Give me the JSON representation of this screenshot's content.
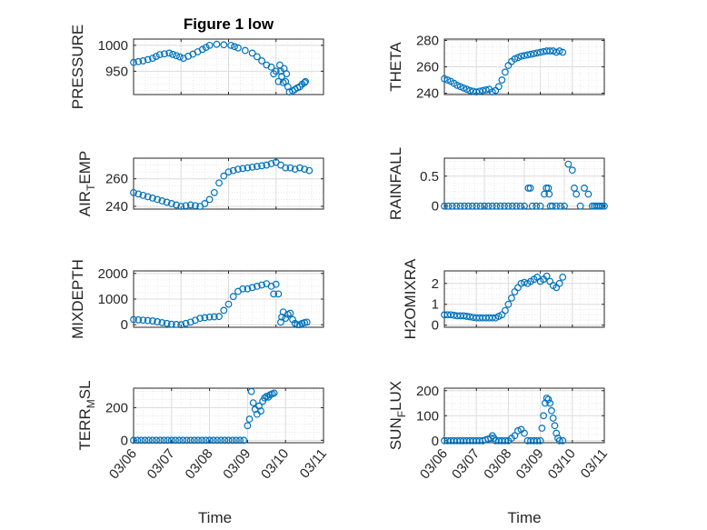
{
  "figure": {
    "title": "Figure 1 low"
  },
  "colors": {
    "marker": "#0072BD",
    "grid": "#dcdcdc",
    "axis": "#262626",
    "background": "#ffffff"
  },
  "chart_data": [
    {
      "type": "scatter",
      "ylabel": "PRESSURE",
      "title": "Figure 1 low",
      "xlim": [
        "03/06",
        "03/10"
      ],
      "ylim": [
        905,
        1012
      ],
      "yticks": [
        950,
        1000
      ],
      "xticks": [
        "03/06",
        "03/07",
        "03/08",
        "03/09",
        "03/10"
      ],
      "show_xticklabels": false,
      "grid": true,
      "marker": "open-circle",
      "series": [
        {
          "x": [
            0,
            0.2,
            0.4,
            0.55,
            0.75,
            0.9,
            1.05,
            1.25,
            1.45,
            1.6,
            1.75,
            1.9,
            2.05,
            2.2,
            2.35,
            2.5,
            2.6,
            2.7,
            2.8,
            2.9,
            2.95,
            3.0,
            3.05,
            3.08,
            3.1,
            3.12,
            3.15,
            3.17,
            3.2,
            3.22,
            3.25,
            3.28,
            3.35,
            3.4,
            3.45,
            3.5,
            3.55,
            3.6,
            3.62
          ],
          "y": [
            967,
            970,
            975,
            982,
            985,
            980,
            975,
            983,
            992,
            1000,
            1002,
            1001,
            1000,
            995,
            990,
            985,
            978,
            970,
            962,
            958,
            945,
            950,
            930,
            962,
            950,
            940,
            928,
            955,
            930,
            945,
            920,
            910,
            912,
            915,
            918,
            920,
            925,
            928,
            930
          ]
        }
      ]
    },
    {
      "type": "scatter",
      "ylabel": "THETA",
      "xlim": [
        "03/06",
        "03/11"
      ],
      "ylim": [
        239,
        281
      ],
      "yticks": [
        240,
        260,
        280
      ],
      "xticks": [
        "03/06",
        "03/07",
        "03/08",
        "03/09",
        "03/10",
        "03/11"
      ],
      "show_xticklabels": false,
      "grid": true,
      "marker": "open-circle",
      "series": [
        {
          "x": [
            0,
            0.2,
            0.4,
            0.6,
            0.8,
            1.0,
            1.2,
            1.4,
            1.5,
            1.6,
            1.7,
            1.8,
            1.9,
            2.0,
            2.1,
            2.2,
            2.4,
            2.6,
            2.8,
            3.0,
            3.2,
            3.4,
            3.5,
            3.6,
            3.7
          ],
          "y": [
            251,
            249,
            246,
            244,
            242,
            241,
            242,
            243,
            241,
            242,
            245,
            250,
            256,
            261,
            264,
            266,
            268,
            269,
            270,
            271,
            272,
            272,
            271,
            272,
            271
          ]
        }
      ]
    },
    {
      "type": "scatter",
      "ylabel": "AIR_TEMP",
      "xlim": [
        "03/06",
        "03/10"
      ],
      "ylim": [
        238,
        275
      ],
      "yticks": [
        240,
        260
      ],
      "xticks": [
        "03/06",
        "03/07",
        "03/08",
        "03/09",
        "03/10"
      ],
      "show_xticklabels": false,
      "grid": true,
      "marker": "open-circle",
      "series": [
        {
          "x": [
            0,
            0.2,
            0.4,
            0.6,
            0.8,
            1.0,
            1.2,
            1.4,
            1.5,
            1.6,
            1.7,
            1.8,
            1.9,
            2.0,
            2.2,
            2.4,
            2.6,
            2.8,
            3.0,
            3.1,
            3.2,
            3.3,
            3.4,
            3.5,
            3.6,
            3.7
          ],
          "y": [
            250,
            248,
            246,
            244,
            242,
            240,
            241,
            240,
            242,
            245,
            250,
            257,
            262,
            265,
            267,
            268,
            269,
            270,
            272,
            270,
            268,
            268,
            267,
            268,
            267,
            266
          ]
        }
      ]
    },
    {
      "type": "scatter",
      "ylabel": "RAINFALL",
      "xlim": [
        "03/06",
        "03/10"
      ],
      "ylim": [
        -0.05,
        0.8
      ],
      "yticks": [
        0,
        0.5
      ],
      "xticks": [
        "03/06",
        "03/07",
        "03/08",
        "03/09",
        "03/10"
      ],
      "show_xticklabels": false,
      "grid": true,
      "marker": "open-circle",
      "series": [
        {
          "x": [
            0,
            0.5,
            1.0,
            1.5,
            2.0,
            2.1,
            2.15,
            2.2,
            2.4,
            2.5,
            2.55,
            2.6,
            2.62,
            2.65,
            2.7,
            2.8,
            3.0,
            3.1,
            3.2,
            3.25,
            3.3,
            3.4,
            3.5,
            3.6,
            3.7,
            3.75,
            3.8,
            3.85,
            3.9,
            3.95,
            4.0
          ],
          "y": [
            0,
            0,
            0,
            0,
            0,
            0.3,
            0.3,
            0,
            0,
            0.2,
            0.3,
            0.3,
            0.2,
            0,
            0,
            0,
            0,
            0.7,
            0.6,
            0.3,
            0.2,
            0,
            0.3,
            0.2,
            0,
            0,
            0,
            0,
            0,
            0,
            0
          ]
        }
      ]
    },
    {
      "type": "scatter",
      "ylabel": "MIXDEPTH",
      "xlim": [
        "03/06",
        "03/10"
      ],
      "ylim": [
        -100,
        2100
      ],
      "yticks": [
        0,
        1000,
        2000
      ],
      "xticks": [
        "03/06",
        "03/07",
        "03/08",
        "03/09",
        "03/10"
      ],
      "show_xticklabels": false,
      "grid": true,
      "marker": "open-circle",
      "series": [
        {
          "x": [
            0,
            0.2,
            0.4,
            0.6,
            0.8,
            1.0,
            1.2,
            1.4,
            1.6,
            1.8,
            2.0,
            2.1,
            2.2,
            2.3,
            2.4,
            2.5,
            2.6,
            2.7,
            2.8,
            2.9,
            2.95,
            3.0,
            3.05,
            3.1,
            3.12,
            3.15,
            3.2,
            3.25,
            3.3,
            3.35,
            3.4,
            3.45,
            3.5,
            3.55,
            3.6,
            3.65
          ],
          "y": [
            200,
            180,
            150,
            80,
            20,
            0,
            100,
            250,
            300,
            320,
            800,
            1100,
            1300,
            1400,
            1400,
            1450,
            1500,
            1550,
            1600,
            1500,
            1200,
            1580,
            1200,
            100,
            300,
            500,
            250,
            400,
            450,
            200,
            50,
            0,
            0,
            50,
            80,
            100
          ]
        }
      ]
    },
    {
      "type": "scatter",
      "ylabel": "H2OMIXRA",
      "xlim": [
        "03/06",
        "03/11"
      ],
      "ylim": [
        -0.1,
        2.6
      ],
      "yticks": [
        0,
        1,
        2
      ],
      "xticks": [
        "03/06",
        "03/07",
        "03/08",
        "03/09",
        "03/10",
        "03/11"
      ],
      "show_xticklabels": false,
      "grid": true,
      "marker": "open-circle",
      "series": [
        {
          "x": [
            0,
            0.2,
            0.4,
            0.6,
            0.8,
            1.0,
            1.2,
            1.4,
            1.6,
            1.8,
            1.9,
            2.0,
            2.1,
            2.2,
            2.3,
            2.4,
            2.5,
            2.6,
            2.7,
            2.8,
            2.9,
            3.0,
            3.1,
            3.2,
            3.3,
            3.4,
            3.5,
            3.6,
            3.7
          ],
          "y": [
            0.5,
            0.5,
            0.45,
            0.45,
            0.4,
            0.35,
            0.35,
            0.35,
            0.35,
            0.5,
            0.7,
            1.0,
            1.3,
            1.6,
            1.8,
            2.0,
            2.05,
            2.0,
            2.1,
            2.2,
            2.3,
            2.1,
            2.2,
            2.35,
            2.1,
            1.9,
            1.8,
            2.0,
            2.3
          ]
        }
      ]
    },
    {
      "type": "scatter",
      "ylabel": "TERR_MSL",
      "xlim": [
        "03/06",
        "03/11"
      ],
      "ylim": [
        -15,
        320
      ],
      "yticks": [
        0,
        200
      ],
      "xticks": [
        "03/06",
        "03/07",
        "03/08",
        "03/09",
        "03/10",
        "03/11"
      ],
      "xticklabels": [
        "03/06",
        "03/07",
        "03/08",
        "03/09",
        "03/10",
        "03/11"
      ],
      "show_xticklabels": true,
      "xlabel": "Time",
      "grid": true,
      "marker": "open-circle",
      "series": [
        {
          "x": [
            0,
            0.5,
            1.0,
            1.5,
            2.0,
            2.5,
            2.9,
            3.0,
            3.05,
            3.1,
            3.15,
            3.2,
            3.25,
            3.3,
            3.35,
            3.4,
            3.45,
            3.5,
            3.55,
            3.6,
            3.65,
            3.7
          ],
          "y": [
            0,
            0,
            0,
            0,
            0,
            0,
            0,
            90,
            130,
            300,
            230,
            190,
            160,
            210,
            180,
            240,
            260,
            270,
            265,
            280,
            285,
            290
          ]
        }
      ]
    },
    {
      "type": "scatter",
      "ylabel": "SUN_FLUX",
      "xlim": [
        "03/06",
        "03/11"
      ],
      "ylim": [
        -8,
        210
      ],
      "yticks": [
        0,
        100,
        200
      ],
      "xticks": [
        "03/06",
        "03/07",
        "03/08",
        "03/09",
        "03/10",
        "03/11"
      ],
      "xticklabels": [
        "03/06",
        "03/07",
        "03/08",
        "03/09",
        "03/10",
        "03/11"
      ],
      "show_xticklabels": true,
      "xlabel": "Time",
      "grid": true,
      "marker": "open-circle",
      "series": [
        {
          "x": [
            0,
            0.3,
            0.6,
            0.9,
            1.2,
            1.45,
            1.5,
            1.55,
            1.6,
            1.7,
            2.0,
            2.2,
            2.3,
            2.4,
            2.5,
            2.6,
            2.8,
            3.0,
            3.05,
            3.1,
            3.15,
            3.2,
            3.25,
            3.3,
            3.35,
            3.4,
            3.45,
            3.5,
            3.55,
            3.6,
            3.7
          ],
          "y": [
            0,
            0,
            0,
            0,
            0,
            10,
            20,
            10,
            0,
            0,
            0,
            20,
            40,
            45,
            30,
            0,
            0,
            0,
            50,
            100,
            150,
            170,
            165,
            150,
            120,
            90,
            60,
            30,
            10,
            0,
            0
          ]
        }
      ]
    }
  ]
}
